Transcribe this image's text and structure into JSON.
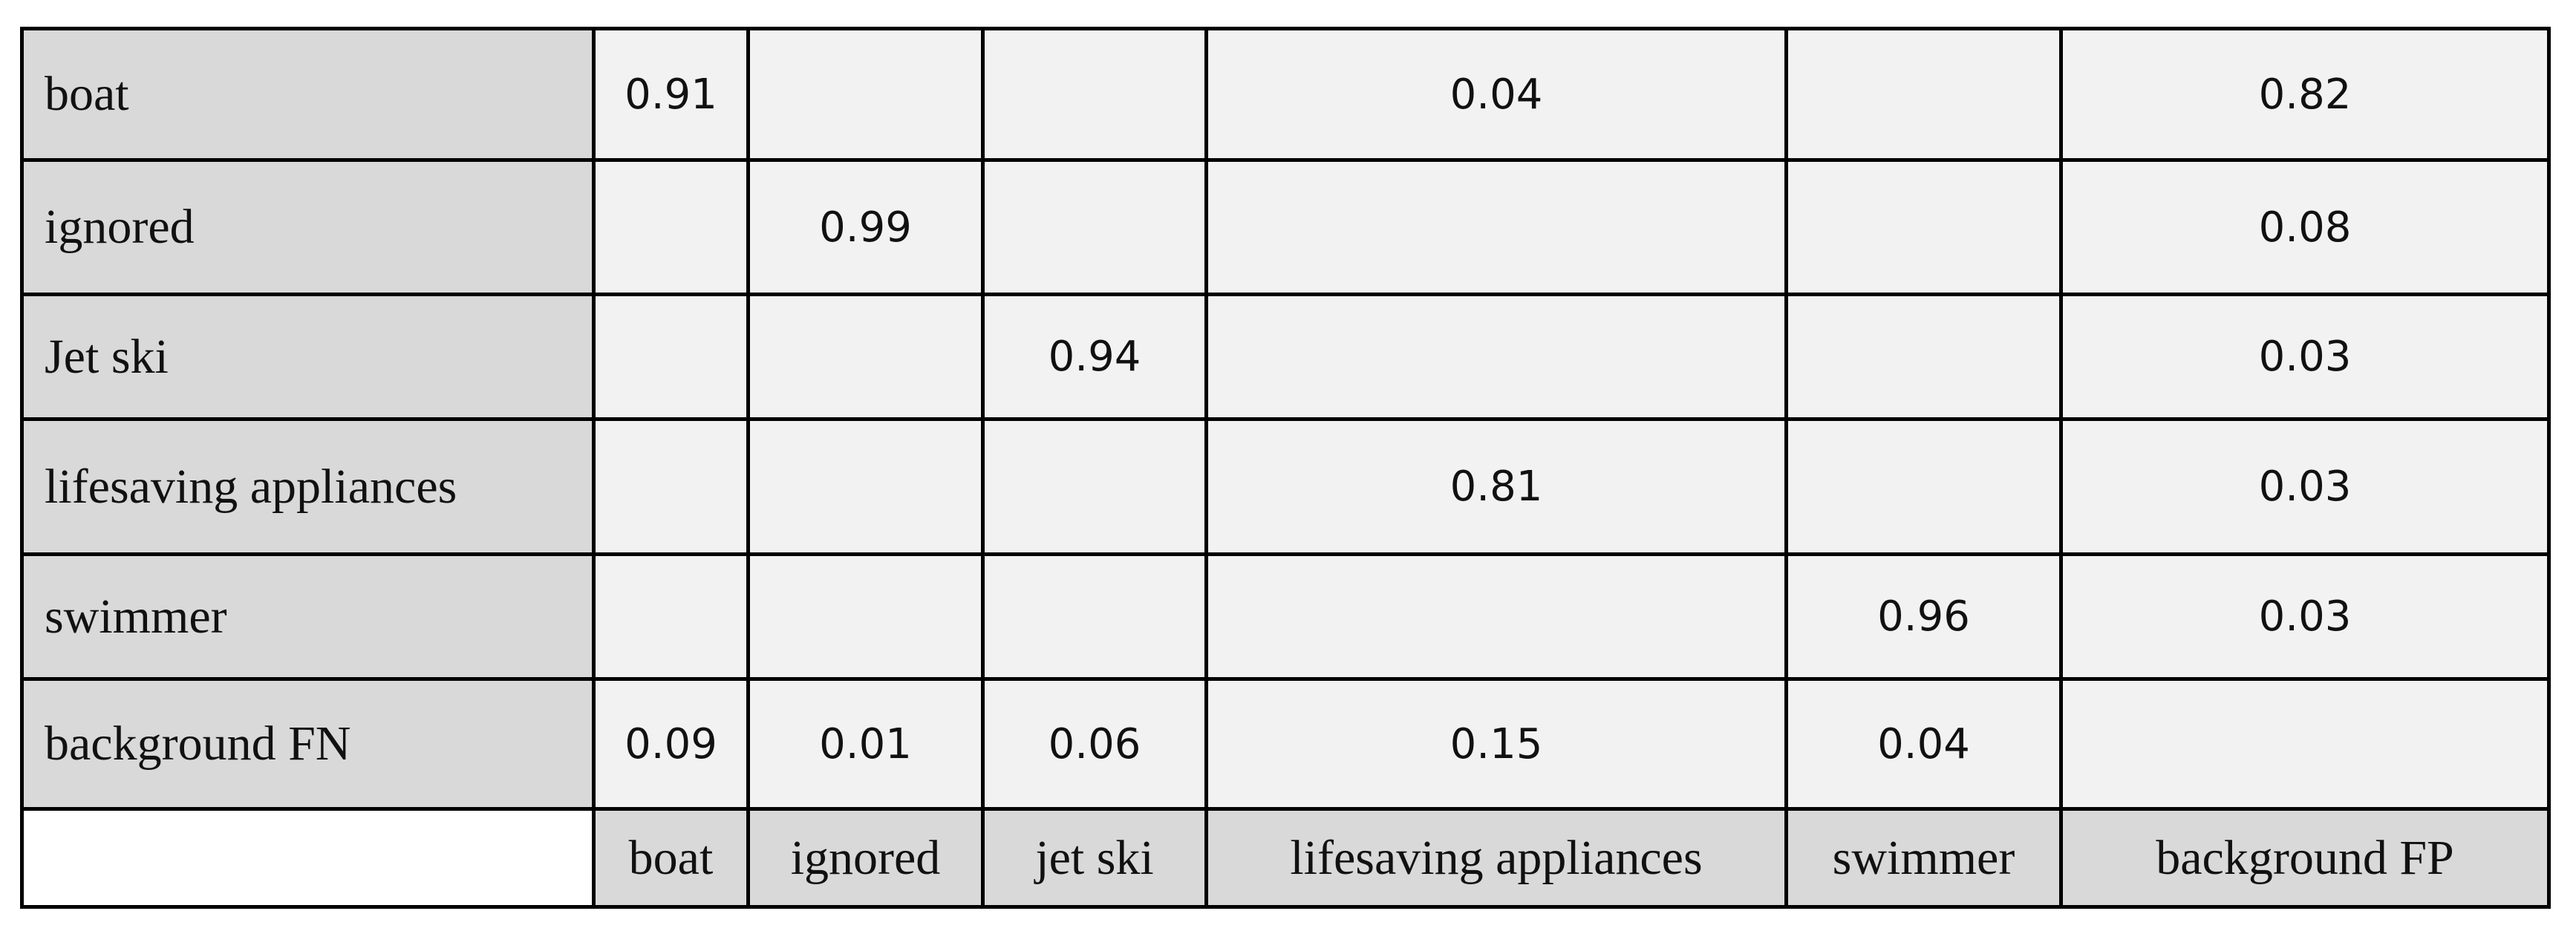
{
  "table": {
    "rows": [
      {
        "label": "boat",
        "cells": [
          0.91,
          null,
          null,
          0.04,
          null,
          0.82
        ]
      },
      {
        "label": "ignored",
        "cells": [
          null,
          0.99,
          null,
          null,
          null,
          0.08
        ]
      },
      {
        "label": "Jet ski",
        "cells": [
          null,
          null,
          0.94,
          null,
          null,
          0.03
        ]
      },
      {
        "label": "lifesaving appliances",
        "cells": [
          null,
          null,
          null,
          0.81,
          null,
          0.03
        ]
      },
      {
        "label": "swimmer",
        "cells": [
          null,
          null,
          null,
          null,
          0.96,
          0.03
        ]
      },
      {
        "label": "background FN",
        "cells": [
          0.09,
          0.01,
          0.06,
          0.15,
          0.04,
          null
        ]
      }
    ],
    "columns": [
      "boat",
      "ignored",
      "jet ski",
      "lifesaving appliances",
      "swimmer",
      "background FP"
    ]
  }
}
